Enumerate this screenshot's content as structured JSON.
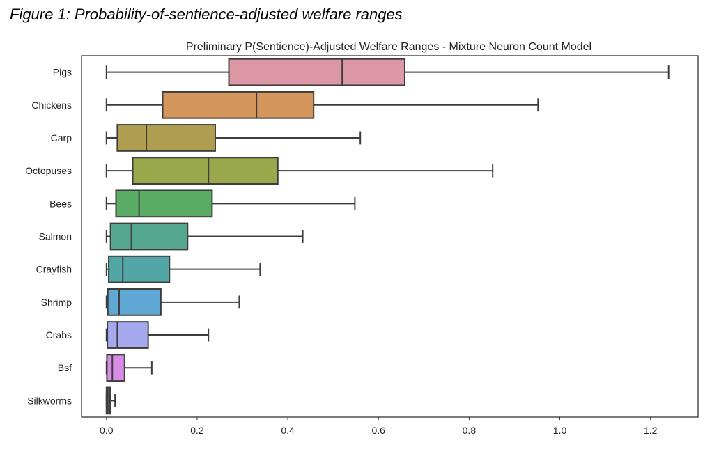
{
  "figure_caption": "Figure 1: Probability-of-sentience-adjusted welfare ranges",
  "chart_data": {
    "type": "boxplot",
    "orientation": "horizontal",
    "title": "Preliminary P(Sentience)-Adjusted Welfare Ranges - Mixture Neuron Count Model",
    "xlabel": "",
    "ylabel": "",
    "xlim": [
      -0.055,
      1.305
    ],
    "xticks": [
      0.0,
      0.2,
      0.4,
      0.6,
      0.8,
      1.0,
      1.2
    ],
    "xtick_labels": [
      "0.0",
      "0.2",
      "0.4",
      "0.6",
      "0.8",
      "1.0",
      "1.2"
    ],
    "grid": false,
    "categories": [
      "Pigs",
      "Chickens",
      "Carp",
      "Octopuses",
      "Bees",
      "Salmon",
      "Crayfish",
      "Shrimp",
      "Crabs",
      "Bsf",
      "Silkworms"
    ],
    "series": [
      {
        "name": "Pigs",
        "whisker_low": 0.0,
        "q1": 0.27,
        "median": 0.52,
        "q3": 0.658,
        "whisker_high": 1.24,
        "color": "#dc97a5"
      },
      {
        "name": "Chickens",
        "whisker_low": 0.0,
        "q1": 0.124,
        "median": 0.331,
        "q3": 0.457,
        "whisker_high": 0.952,
        "color": "#d4965a"
      },
      {
        "name": "Carp",
        "whisker_low": 0.0,
        "q1": 0.024,
        "median": 0.088,
        "q3": 0.24,
        "whisker_high": 0.56,
        "color": "#af9e4f"
      },
      {
        "name": "Octopuses",
        "whisker_low": 0.0,
        "q1": 0.058,
        "median": 0.225,
        "q3": 0.378,
        "whisker_high": 0.852,
        "color": "#98a84b"
      },
      {
        "name": "Bees",
        "whisker_low": 0.0,
        "q1": 0.021,
        "median": 0.072,
        "q3": 0.233,
        "whisker_high": 0.548,
        "color": "#5aac64"
      },
      {
        "name": "Salmon",
        "whisker_low": 0.0,
        "q1": 0.009,
        "median": 0.055,
        "q3": 0.179,
        "whisker_high": 0.433,
        "color": "#55a88f"
      },
      {
        "name": "Crayfish",
        "whisker_low": 0.0,
        "q1": 0.005,
        "median": 0.036,
        "q3": 0.139,
        "whisker_high": 0.339,
        "color": "#52a6a5"
      },
      {
        "name": "Shrimp",
        "whisker_low": 0.0,
        "q1": 0.003,
        "median": 0.028,
        "q3": 0.12,
        "whisker_high": 0.293,
        "color": "#5ea8d3"
      },
      {
        "name": "Crabs",
        "whisker_low": 0.0,
        "q1": 0.002,
        "median": 0.024,
        "q3": 0.092,
        "whisker_high": 0.225,
        "color": "#a5a9ee"
      },
      {
        "name": "Bsf",
        "whisker_low": 0.0,
        "q1": 0.001,
        "median": 0.013,
        "q3": 0.04,
        "whisker_high": 0.1,
        "color": "#d58de5"
      },
      {
        "name": "Silkworms",
        "whisker_low": 0.0,
        "q1": 0.0,
        "median": 0.003,
        "q3": 0.008,
        "whisker_high": 0.019,
        "color": "#b27fa8"
      }
    ]
  }
}
